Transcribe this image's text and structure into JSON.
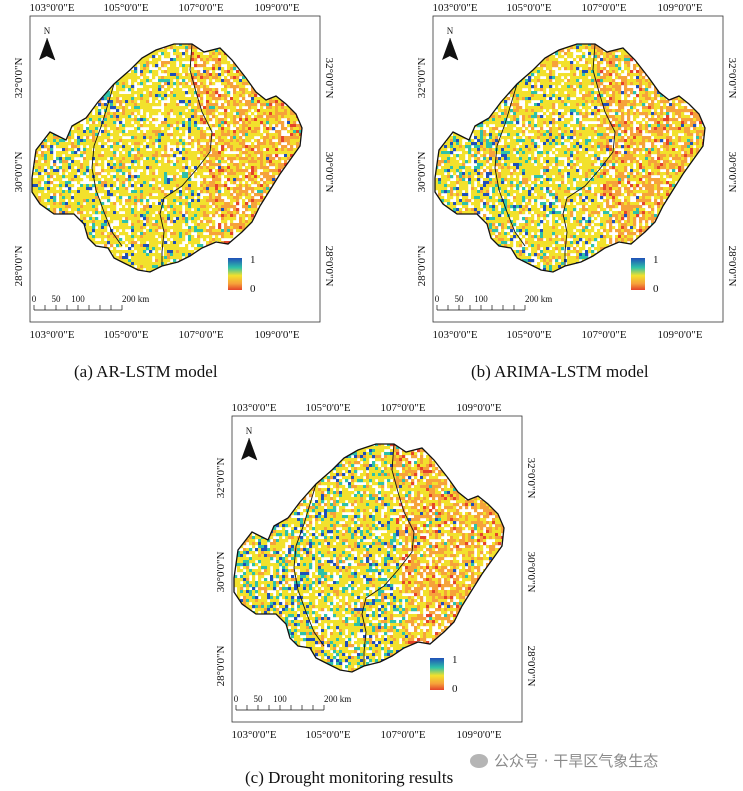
{
  "panels": [
    {
      "id": "a",
      "caption": "(a) AR-LSTM model",
      "lon_ticks": [
        "103°0'0\"E",
        "105°0'0\"E",
        "107°0'0\"E",
        "109°0'0\"E"
      ],
      "lat_ticks": [
        "32°0'0\"N",
        "30°0'0\"N",
        "28°0'0\"N"
      ],
      "north_label": "N",
      "legend": {
        "max": "1",
        "min": "0"
      },
      "scale": {
        "ticks": [
          "0",
          "50",
          "100",
          "200 km"
        ]
      }
    },
    {
      "id": "b",
      "caption": "(b) ARIMA-LSTM model",
      "lon_ticks": [
        "103°0'0\"E",
        "105°0'0\"E",
        "107°0'0\"E",
        "109°0'0\"E"
      ],
      "lat_ticks": [
        "32°0'0\"N",
        "30°0'0\"N",
        "28°0'0\"N"
      ],
      "north_label": "N",
      "legend": {
        "max": "1",
        "min": "0"
      },
      "scale": {
        "ticks": [
          "0",
          "50",
          "100",
          "200 km"
        ]
      }
    },
    {
      "id": "c",
      "caption": "(c) Drought monitoring results",
      "lon_ticks": [
        "103°0'0\"E",
        "105°0'0\"E",
        "107°0'0\"E",
        "109°0'0\"E"
      ],
      "lat_ticks": [
        "32°0'0\"N",
        "30°0'0\"N",
        "28°0'0\"N"
      ],
      "north_label": "N",
      "legend": {
        "max": "1",
        "min": "0"
      },
      "scale": {
        "ticks": [
          "0",
          "50",
          "100",
          "200 km"
        ]
      }
    }
  ],
  "colors": {
    "ramp_top": "#1f4fb8",
    "ramp_mid_high": "#2ec1a8",
    "ramp_mid": "#f2e12c",
    "ramp_low": "#f6a23a",
    "ramp_bottom": "#e4442a",
    "boundary": "#111111"
  },
  "watermark": "公众号 · 干旱区气象生态"
}
